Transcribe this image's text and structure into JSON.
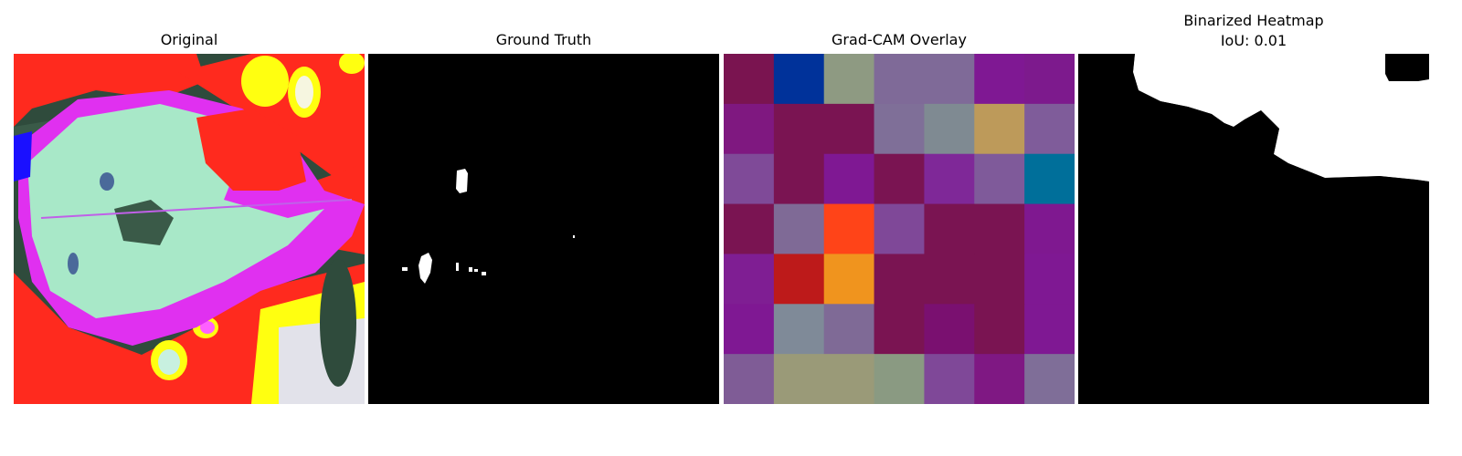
{
  "panels": [
    {
      "id": "original",
      "title": "Original"
    },
    {
      "id": "ground-truth",
      "title": "Ground Truth"
    },
    {
      "id": "gradcam",
      "title": "Grad-CAM Overlay"
    },
    {
      "id": "binarized",
      "title": "Binarized Heatmap",
      "subtitle": "IoU: 0.01"
    }
  ],
  "gradcam_grid": [
    [
      "#7a1450",
      "#00329a",
      "#8e9a82",
      "#7f6a98",
      "#7f6a98",
      "#7f1893",
      "#7d1a8d"
    ],
    [
      "#7f1880",
      "#7a1452",
      "#7a1452",
      "#7f6f98",
      "#7f8a92",
      "#bd9a5a",
      "#7f5c9a"
    ],
    [
      "#7f4a98",
      "#7a1452",
      "#7f1893",
      "#7a1452",
      "#7f2898",
      "#7f5a9a",
      "#006f9a"
    ],
    [
      "#7a1452",
      "#7f6a96",
      "#ff4418",
      "#7f4898",
      "#7a1452",
      "#7a1452",
      "#7f1890"
    ],
    [
      "#7f1e93",
      "#bd1a1a",
      "#f0941e",
      "#7a1452",
      "#7a1452",
      "#7a1452",
      "#7f1893"
    ],
    [
      "#7f1893",
      "#7f8a98",
      "#7f6a96",
      "#7a1452",
      "#7a1070",
      "#7a1452",
      "#7f1893"
    ],
    [
      "#7f5c96",
      "#9a9a78",
      "#9a9a78",
      "#8a9a82",
      "#7f4898",
      "#7f1883",
      "#7f6e98"
    ]
  ],
  "colors": {
    "background": "#ffffff",
    "mask_black": "#000000",
    "mask_white": "#ffffff",
    "leaf_light": "#a8e8c8",
    "lesion_red": "#ff2a1e",
    "magenta": "#e030f0",
    "yellow": "#ffff10",
    "dark_green": "#2a4a3a"
  }
}
